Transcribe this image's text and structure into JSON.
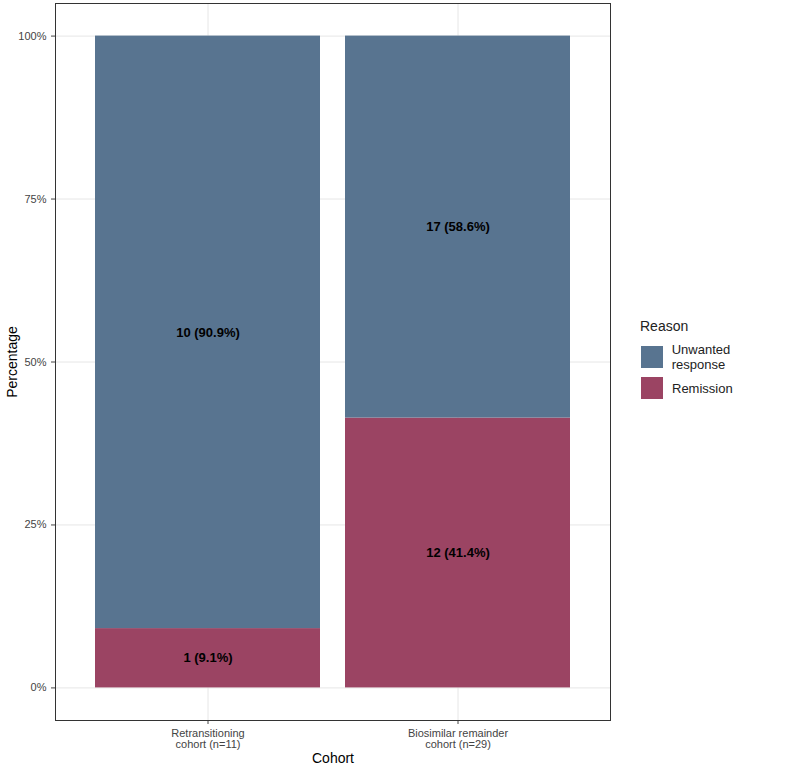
{
  "chart_data": {
    "type": "bar",
    "stacked": true,
    "data_labels": true,
    "grid": true,
    "legend": "right",
    "legend_title": "Reason",
    "x_label": "Cohort",
    "y_label": "Percentage",
    "categories": [
      "Retransitioning\ncohort (n=11)",
      "Biosimilar remainder\ncohort (n=29)"
    ],
    "series": [
      {
        "name": "Unwanted response",
        "color": "#587490",
        "values": [
          90.9,
          58.6
        ],
        "value_labels": [
          "10 (90.9%)",
          "17 (58.6%)"
        ]
      },
      {
        "name": "Remission",
        "color": "#9b4463",
        "values": [
          9.1,
          41.4
        ],
        "value_labels": [
          "1 (9.1%)",
          "12 (41.4%)"
        ]
      }
    ],
    "ylim": [
      -5,
      105
    ],
    "yticks": [
      {
        "value": 0,
        "label": "0%"
      },
      {
        "value": 25,
        "label": "25%"
      },
      {
        "value": 50,
        "label": "50%"
      },
      {
        "value": 75,
        "label": "75%"
      },
      {
        "value": 100,
        "label": "100%"
      }
    ]
  }
}
